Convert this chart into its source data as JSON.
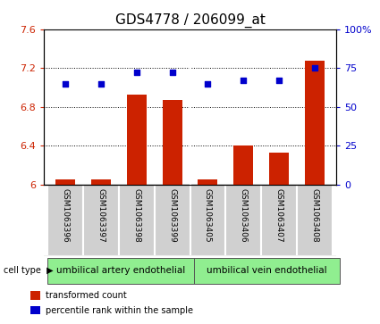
{
  "title": "GDS4778 / 206099_at",
  "samples": [
    "GSM1063396",
    "GSM1063397",
    "GSM1063398",
    "GSM1063399",
    "GSM1063405",
    "GSM1063406",
    "GSM1063407",
    "GSM1063408"
  ],
  "transformed_counts": [
    6.05,
    6.05,
    6.93,
    6.87,
    6.05,
    6.4,
    6.33,
    7.28
  ],
  "percentile_ranks": [
    65,
    65,
    72,
    72,
    65,
    67,
    67,
    75
  ],
  "ylim_left": [
    6.0,
    7.6
  ],
  "ylim_right": [
    0,
    100
  ],
  "yticks_left": [
    6.0,
    6.4,
    6.8,
    7.2,
    7.6
  ],
  "yticks_right": [
    0,
    25,
    50,
    75,
    100
  ],
  "ytick_labels_left": [
    "6",
    "6.4",
    "6.8",
    "7.2",
    "7.6"
  ],
  "ytick_labels_right": [
    "0",
    "25",
    "50",
    "75",
    "100%"
  ],
  "bar_color": "#cc2200",
  "dot_color": "#0000cc",
  "group1_label": "umbilical artery endothelial",
  "group2_label": "umbilical vein endothelial",
  "group1_samples": [
    0,
    1,
    2,
    3
  ],
  "group2_samples": [
    4,
    5,
    6,
    7
  ],
  "cell_type_label": "cell type",
  "legend_bar_label": "transformed count",
  "legend_dot_label": "percentile rank within the sample",
  "sample_bg_color": "#d0d0d0",
  "group_bg_color": "#90ee90",
  "title_fontsize": 11,
  "tick_fontsize": 8,
  "sample_fontsize": 6.5,
  "group_fontsize": 7.5,
  "legend_fontsize": 7
}
